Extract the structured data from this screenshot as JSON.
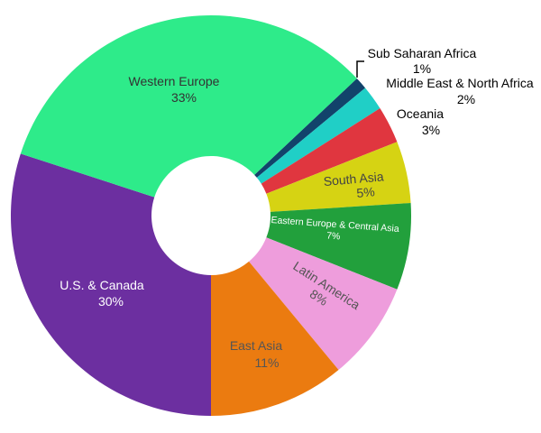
{
  "chart_data": {
    "type": "pie",
    "subtype": "donut",
    "title": "",
    "categories": [
      "Sub Saharan Africa",
      "Middle East & North Africa",
      "Oceania",
      "South Asia",
      "Eastern Europe & Central Asia",
      "Latin America",
      "East Asia",
      "U.S. & Canada",
      "Western Europe"
    ],
    "values": [
      1,
      2,
      3,
      5,
      7,
      8,
      11,
      30,
      33
    ],
    "labels": [
      "1%",
      "2%",
      "3%",
      "5%",
      "7%",
      "8%",
      "11%",
      "30%",
      "33%"
    ],
    "colors": [
      "#12436b",
      "#20cfc6",
      "#e0363f",
      "#d6d313",
      "#22a03c",
      "#ee9ddc",
      "#eb7b10",
      "#6c2fa0",
      "#2eeb8a"
    ],
    "label_colors": [
      "#000000",
      "#000000",
      "#000000",
      "#444444",
      "#ffffff",
      "#444444",
      "#444444",
      "#ffffff",
      "#333333"
    ],
    "legend": "none",
    "hole_ratio": 0.3
  },
  "slices": [
    {
      "name": "Sub Saharan Africa",
      "pct": "1%"
    },
    {
      "name": "Middle East & North Africa",
      "pct": "2%"
    },
    {
      "name": "Oceania",
      "pct": "3%"
    },
    {
      "name": "South Asia",
      "pct": "5%"
    },
    {
      "name": "Eastern Europe & Central Asia",
      "pct": "7%"
    },
    {
      "name": "Latin America",
      "pct": "8%"
    },
    {
      "name": "East Asia",
      "pct": "11%"
    },
    {
      "name": "U.S. & Canada",
      "pct": "30%"
    },
    {
      "name": "Western Europe",
      "pct": "33%"
    }
  ]
}
